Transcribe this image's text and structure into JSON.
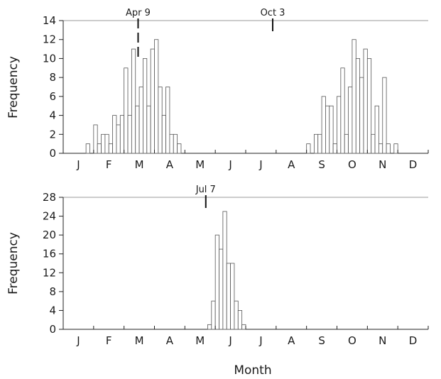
{
  "chart_data": [
    {
      "type": "bar",
      "ylabel": "Frequency",
      "ylim": [
        0,
        14
      ],
      "yticks": [
        0,
        2,
        4,
        6,
        8,
        10,
        12,
        14
      ],
      "months": [
        "J",
        "F",
        "M",
        "A",
        "M",
        "J",
        "J",
        "A",
        "S",
        "O",
        "N",
        "D"
      ],
      "bin_days": 5,
      "values": [
        0,
        0,
        0,
        0,
        0,
        0,
        1,
        0,
        3,
        1,
        2,
        2,
        1,
        4,
        3,
        4,
        9,
        4,
        11,
        5,
        7,
        10,
        5,
        11,
        12,
        7,
        4,
        7,
        2,
        2,
        1,
        0,
        0,
        0,
        0,
        0,
        0,
        0,
        0,
        0,
        0,
        0,
        0,
        0,
        0,
        0,
        0,
        0,
        0,
        0,
        0,
        0,
        0,
        0,
        0,
        0,
        0,
        0,
        0,
        0,
        0,
        0,
        0,
        0,
        1,
        0,
        2,
        2,
        6,
        5,
        5,
        1,
        6,
        9,
        2,
        7,
        12,
        10,
        8,
        11,
        10,
        2,
        5,
        1,
        8,
        1,
        0,
        1,
        0,
        0,
        0,
        0,
        0,
        0,
        0,
        0
      ],
      "markers": [
        {
          "label": "Apr 9",
          "date": "Apr 9",
          "style": "dashed"
        },
        {
          "label": "Oct 3",
          "date": "Oct 3",
          "style": "solid"
        }
      ],
      "grid": false
    },
    {
      "type": "bar",
      "ylabel": "Frequency",
      "xlabel": "Month",
      "ylim": [
        0,
        28
      ],
      "yticks": [
        0,
        4,
        8,
        12,
        16,
        20,
        24,
        28
      ],
      "months": [
        "J",
        "F",
        "M",
        "A",
        "M",
        "J",
        "J",
        "A",
        "S",
        "O",
        "N",
        "D"
      ],
      "bin_days": 5,
      "values": [
        0,
        0,
        0,
        0,
        0,
        0,
        0,
        0,
        0,
        0,
        0,
        0,
        0,
        0,
        0,
        0,
        0,
        0,
        0,
        0,
        0,
        0,
        0,
        0,
        0,
        0,
        0,
        0,
        0,
        0,
        0,
        0,
        0,
        0,
        0,
        0,
        0,
        0,
        1,
        6,
        20,
        17,
        25,
        14,
        14,
        6,
        4,
        1,
        0,
        0,
        0,
        0,
        0,
        0,
        0,
        0,
        0,
        0,
        0,
        0,
        0,
        0,
        0,
        0,
        0,
        0,
        0,
        0,
        0,
        0,
        0,
        0,
        0,
        0,
        0,
        0,
        0,
        0,
        0,
        0,
        0,
        0,
        0,
        0,
        0,
        0,
        0,
        0,
        0,
        0,
        0,
        0,
        0,
        0,
        0,
        0
      ],
      "markers": [
        {
          "label": "Jul 7",
          "date": "Jul 7",
          "style": "solid"
        }
      ],
      "grid": false
    }
  ]
}
